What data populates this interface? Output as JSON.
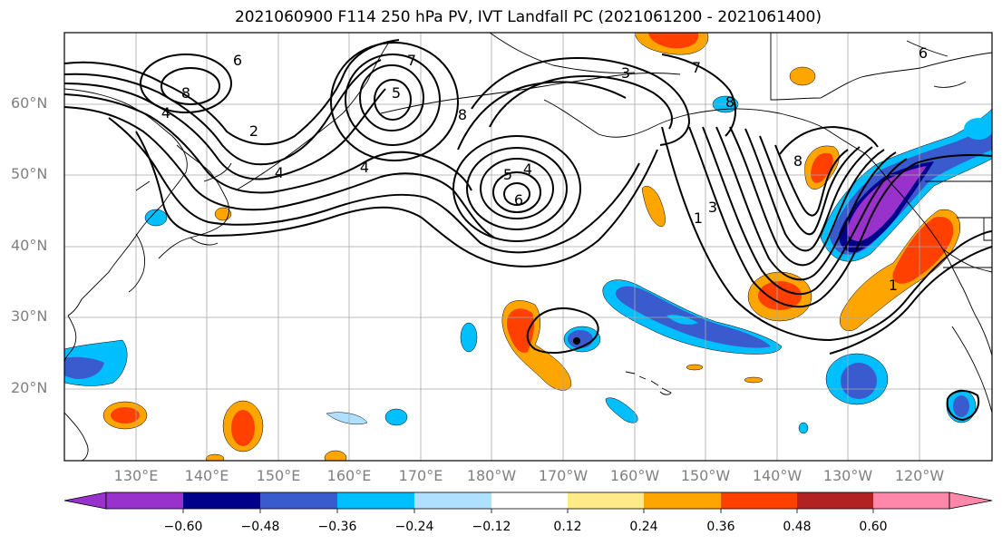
{
  "title": "2021060900 F114 250 hPa PV, IVT Landfall PC (2021061200 - 2021061400)",
  "lat_labels": [
    "60°N",
    "50°N",
    "40°N",
    "30°N",
    "20°N"
  ],
  "lon_labels": [
    "130°E",
    "140°E",
    "150°E",
    "160°E",
    "170°E",
    "180°W",
    "170°W",
    "160°W",
    "150°W",
    "140°W",
    "130°W",
    "120°W"
  ],
  "contour_labels": [
    "6",
    "8",
    "4",
    "2",
    "4",
    "4",
    "7",
    "5",
    "8",
    "5",
    "4",
    "6",
    "3",
    "7",
    "8",
    "1",
    "3",
    "8",
    "1",
    "6"
  ],
  "colorbar": {
    "ticks": [
      "−0.60",
      "−0.48",
      "−0.36",
      "−0.24",
      "−0.12",
      "0.12",
      "0.24",
      "0.36",
      "0.48",
      "0.60"
    ],
    "colors": [
      "#9932CC",
      "#00008B",
      "#3A5BCD",
      "#00BFFF",
      "#B0E0FF",
      "#FFFFFF",
      "#FFEA8A",
      "#FFA500",
      "#FF4000",
      "#B22222",
      "#FF88AA"
    ]
  },
  "legend_placement": "bottom"
}
